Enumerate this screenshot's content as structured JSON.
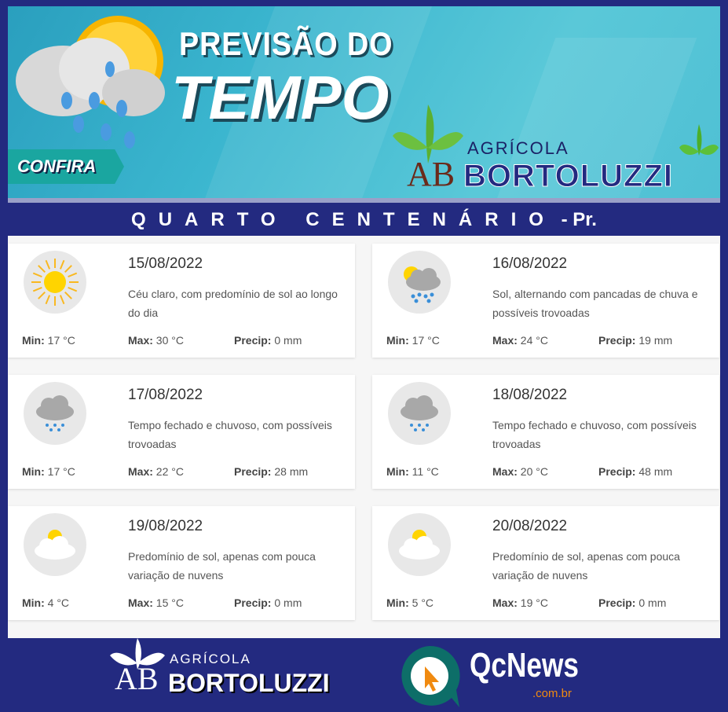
{
  "header": {
    "title_line1": "PREVISÃO DO",
    "title_line2": "TEMPO",
    "cta": "CONFIRA",
    "brand_small": "AGRÍCOLA",
    "brand_big": "BORTOLUZZI",
    "brand_mark": "AB"
  },
  "location": {
    "city": "QUARTO CENTENÁRIO",
    "state": "- Pr."
  },
  "labels": {
    "min": "Min:",
    "max": "Max:",
    "precip": "Precip:"
  },
  "days": [
    {
      "date": "15/08/2022",
      "desc": "Céu claro, com predomínio de sol ao longo do dia",
      "min": "17 °C",
      "max": "30 °C",
      "precip": "0 mm",
      "icon": "sun-icon"
    },
    {
      "date": "16/08/2022",
      "desc": "Sol, alternando com pancadas de chuva e possíveis trovoadas",
      "min": "17 °C",
      "max": "24 °C",
      "precip": "19 mm",
      "icon": "sun-rain-cloud-icon"
    },
    {
      "date": "17/08/2022",
      "desc": "Tempo fechado e chuvoso, com possíveis trovoadas",
      "min": "17 °C",
      "max": "22 °C",
      "precip": "28 mm",
      "icon": "rain-cloud-icon"
    },
    {
      "date": "18/08/2022",
      "desc": "Tempo fechado e chuvoso, com possíveis trovoadas",
      "min": "11 °C",
      "max": "20 °C",
      "precip": "48 mm",
      "icon": "rain-cloud-icon"
    },
    {
      "date": "19/08/2022",
      "desc": "Predomínio de sol, apenas com pouca variação de nuvens",
      "min": "4 °C",
      "max": "15 °C",
      "precip": "0 mm",
      "icon": "sun-cloud-icon"
    },
    {
      "date": "20/08/2022",
      "desc": "Predomínio de sol, apenas com pouca variação de nuvens",
      "min": "5 °C",
      "max": "19 °C",
      "precip": "0 mm",
      "icon": "sun-cloud-icon"
    }
  ],
  "footer": {
    "brand_small": "AGRÍCOLA",
    "brand_big": "BORTOLUZZI",
    "brand_mark": "AB",
    "news": "QcNews",
    "news_domain": ".com.br"
  },
  "colors": {
    "navy": "#232a80",
    "teal": "#3bb6cf",
    "sun": "#ffd400",
    "drop": "#3a8fd8"
  }
}
